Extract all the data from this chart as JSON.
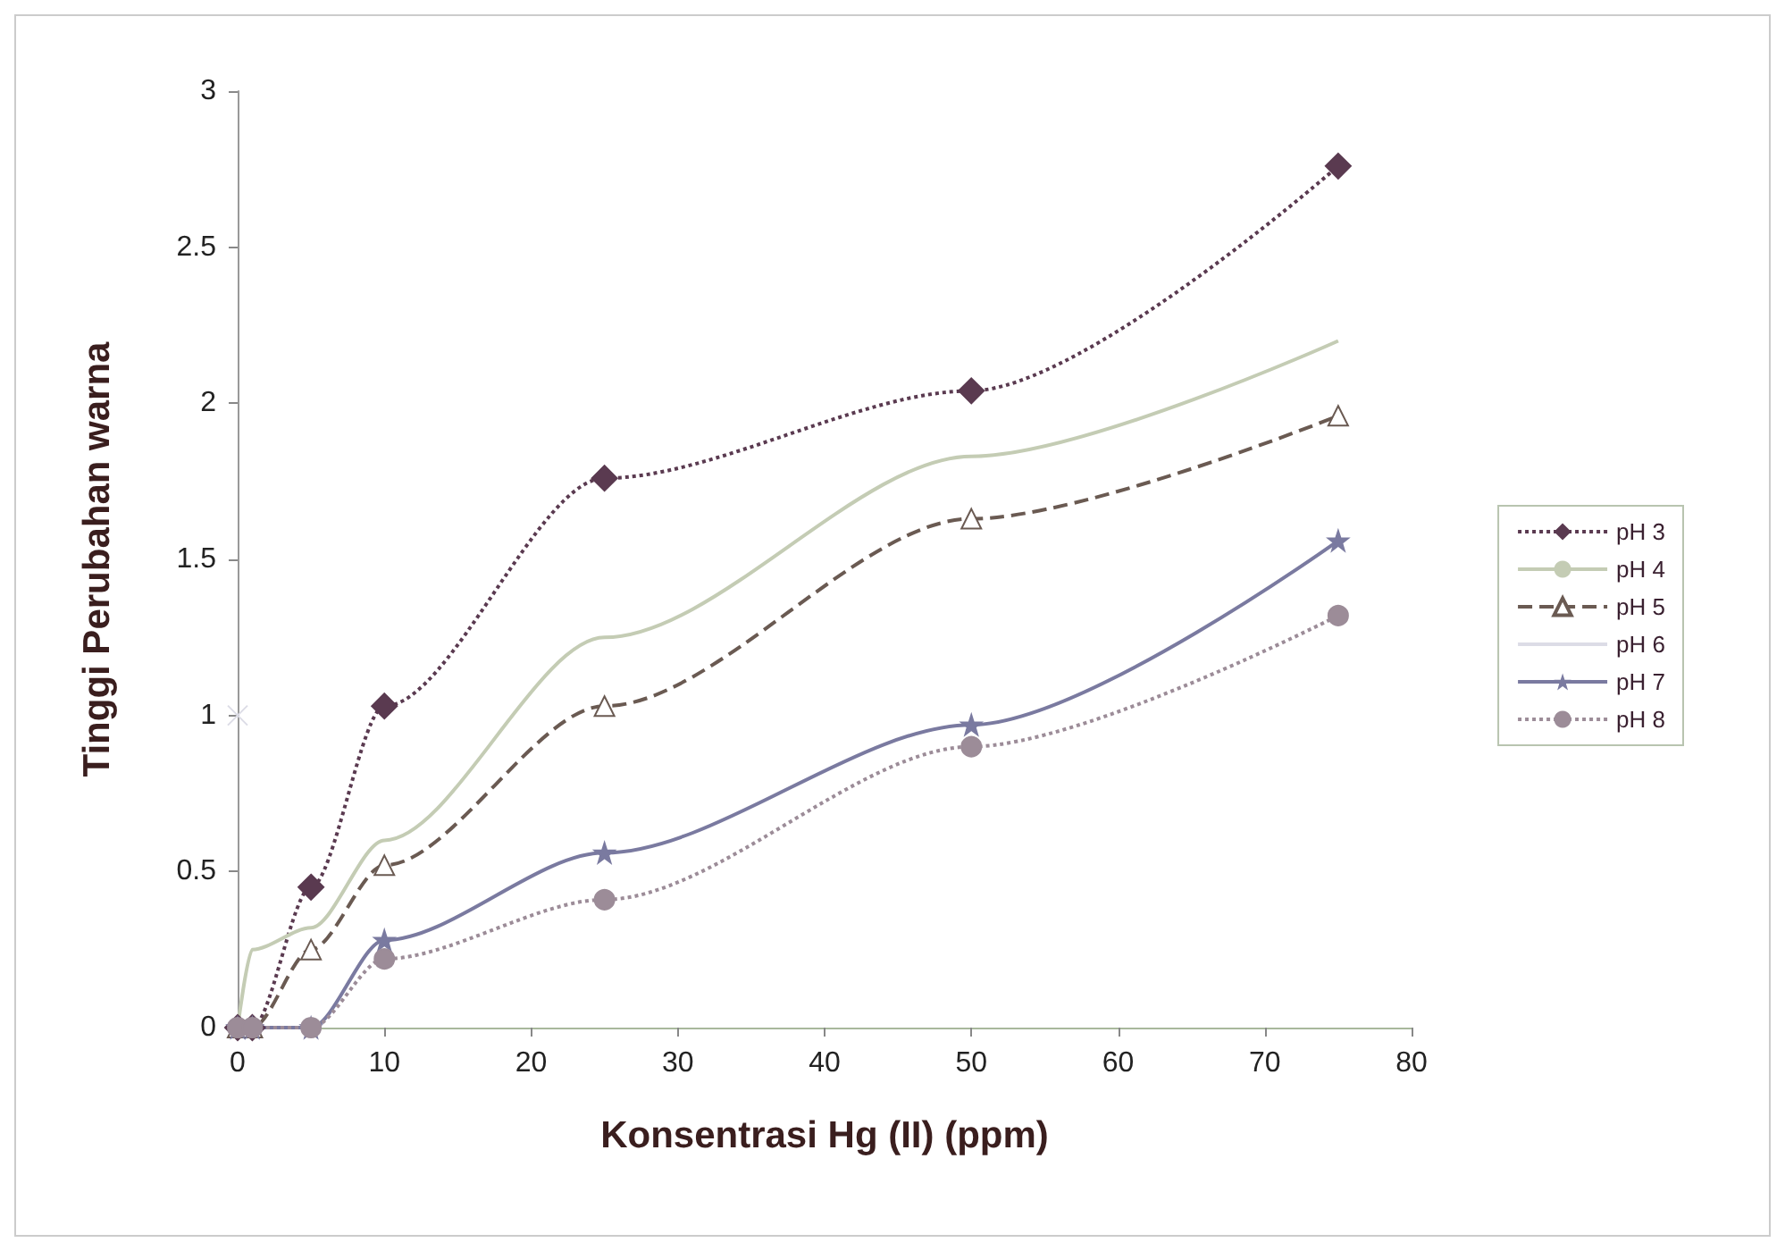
{
  "chart_data": {
    "type": "line",
    "xlabel": "Konsentrasi Hg (II) (ppm)",
    "ylabel": "Tinggi Perubahan warna",
    "x": [
      0,
      1,
      5,
      10,
      25,
      50,
      75
    ],
    "xlim": [
      0,
      80
    ],
    "xticks": [
      0,
      10,
      20,
      30,
      40,
      50,
      60,
      70,
      80
    ],
    "ylim": [
      0,
      3
    ],
    "yticks": [
      0,
      0.5,
      1,
      1.5,
      2,
      2.5,
      3
    ],
    "grid": false,
    "legend": "right",
    "series": [
      {
        "name": "pH 3",
        "color": "#5a3a50",
        "marker": "diamond",
        "line_style": "dotted",
        "values": [
          0,
          0,
          0.45,
          1.03,
          1.76,
          2.04,
          2.76
        ]
      },
      {
        "name": "pH 4",
        "color": "#c4ccb4",
        "marker": "none",
        "line_style": "solid",
        "values": [
          0,
          0.25,
          0.32,
          0.6,
          1.25,
          1.83,
          2.2
        ]
      },
      {
        "name": "pH 5",
        "color": "#6a5a52",
        "marker": "triangle",
        "line_style": "dashed",
        "values": [
          0,
          0,
          0.25,
          0.52,
          1.03,
          1.63,
          1.96
        ]
      },
      {
        "name": "pH 6",
        "color": "#dcdce6",
        "marker": "cross",
        "line_style": "solid",
        "values": [
          1,
          null,
          null,
          null,
          null,
          null,
          null
        ]
      },
      {
        "name": "pH 7",
        "color": "#7a7aa0",
        "marker": "star",
        "line_style": "solid",
        "values": [
          0,
          0,
          0,
          0.28,
          0.56,
          0.97,
          1.56
        ]
      },
      {
        "name": "pH 8",
        "color": "#9c8c98",
        "marker": "circle",
        "line_style": "dotted",
        "values": [
          0,
          0,
          0,
          0.22,
          0.41,
          0.9,
          1.32
        ]
      }
    ]
  }
}
